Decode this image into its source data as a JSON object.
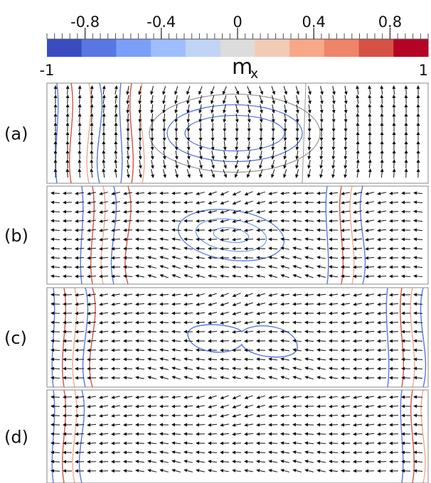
{
  "colorbar": {
    "label": "m",
    "label_subscript": "x",
    "range": [
      -1,
      1
    ],
    "ticks": [
      -0.8,
      -0.4,
      0,
      0.4,
      0.8
    ],
    "colors": [
      "#3b4cc0",
      "#5977e3",
      "#7b9ff9",
      "#9ebeff",
      "#c0d4f5",
      "#dddcdc",
      "#f2cbb7",
      "#f7a889",
      "#ee8468",
      "#d65244",
      "#b40426"
    ]
  },
  "panels": [
    {
      "label": "(a)"
    },
    {
      "label": "(b)"
    },
    {
      "label": "(c)"
    },
    {
      "label": "(d)"
    }
  ]
}
